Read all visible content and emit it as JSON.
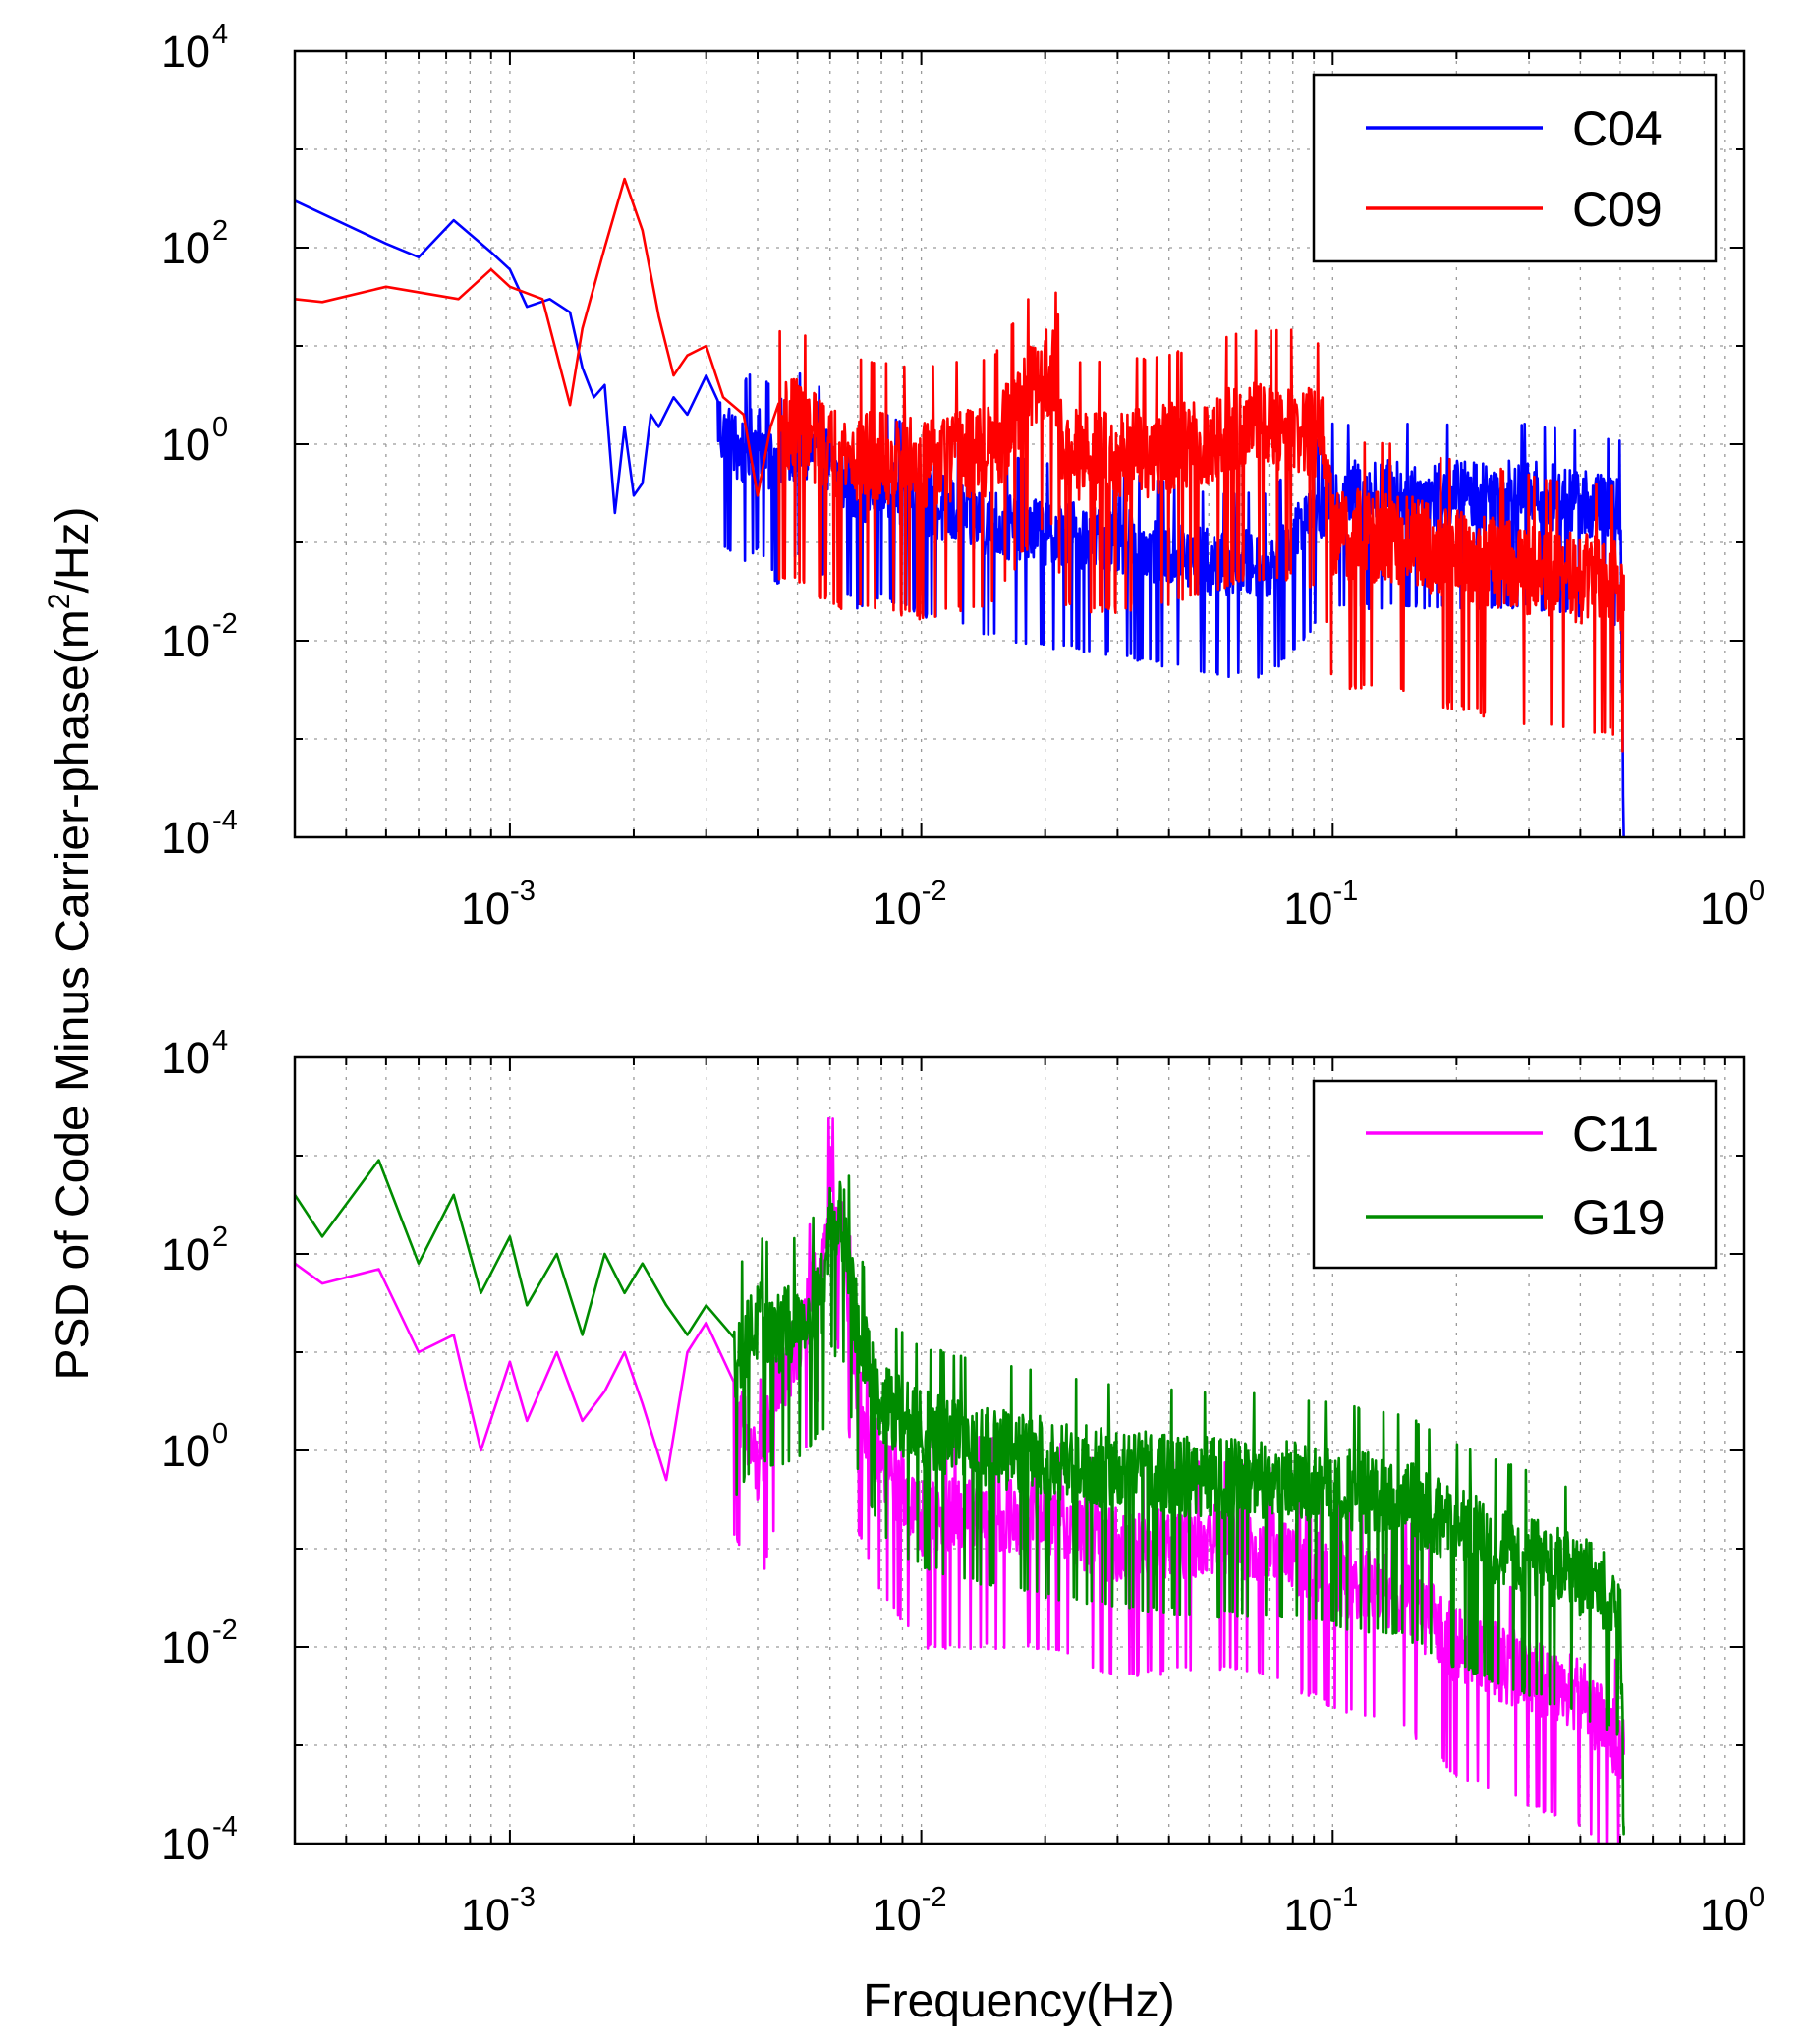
{
  "figure": {
    "ylabel": "PSD of Code Minus Carrier-phase(m",
    "ylabel_sup": "2",
    "ylabel_tail": "/Hz)",
    "xlabel": "Frequency(Hz)"
  },
  "chart_data": [
    {
      "type": "line",
      "title": "",
      "xlabel": "",
      "ylabel": "PSD of Code Minus Carrier-phase(m^2/Hz)",
      "xscale": "log",
      "yscale": "log",
      "xlim": [
        0.0003,
        1
      ],
      "ylim": [
        0.0001,
        10000
      ],
      "x_ticks": [
        {
          "base": "10",
          "exp": "-3",
          "value": 0.001
        },
        {
          "base": "10",
          "exp": "-2",
          "value": 0.01
        },
        {
          "base": "10",
          "exp": "-1",
          "value": 0.1
        },
        {
          "base": "10",
          "exp": "0",
          "value": 1
        }
      ],
      "y_ticks": [
        {
          "base": "10",
          "exp": "4",
          "value": 10000
        },
        {
          "base": "10",
          "exp": "2",
          "value": 100
        },
        {
          "base": "10",
          "exp": "0",
          "value": 1
        },
        {
          "base": "10",
          "exp": "-2",
          "value": 0.01
        },
        {
          "base": "10",
          "exp": "-4",
          "value": 0.0001
        }
      ],
      "grid": true,
      "legend_position": "top-right",
      "series": [
        {
          "name": "C04",
          "color": "#0000ff",
          "x": [
            0.0003,
            0.0005,
            0.0006,
            0.00073,
            0.0009,
            0.001,
            0.0011,
            0.00125,
            0.0014,
            0.0015,
            0.0016,
            0.0017,
            0.0018,
            0.0019,
            0.002,
            0.0021,
            0.0022,
            0.0023,
            0.0025,
            0.0027,
            0.003,
            0.0033,
            0.0037,
            0.004,
            0.0045,
            0.005,
            0.006,
            0.007,
            0.008,
            0.01,
            0.012,
            0.015,
            0.02,
            0.03,
            0.05,
            0.07,
            0.1,
            0.15,
            0.2,
            0.3,
            0.4,
            0.5,
            0.51
          ],
          "y": [
            300,
            110,
            80,
            190,
            90,
            60,
            25,
            30,
            22,
            6,
            3,
            4,
            0.2,
            1.5,
            0.3,
            0.4,
            2,
            1.5,
            3,
            2,
            5,
            1.2,
            0.8,
            1.2,
            0.5,
            1.0,
            0.6,
            0.3,
            0.4,
            0.25,
            0.2,
            0.15,
            0.12,
            0.1,
            0.06,
            0.06,
            0.3,
            0.3,
            0.3,
            0.3,
            0.25,
            0.2,
            0.0001
          ],
          "noise_from": 0.0032,
          "noise_amp": 0.7
        },
        {
          "name": "C09",
          "color": "#ff0000",
          "x": [
            0.0003,
            0.00035,
            0.0005,
            0.00075,
            0.0009,
            0.001,
            0.0012,
            0.0014,
            0.0015,
            0.0017,
            0.0019,
            0.0021,
            0.0023,
            0.0025,
            0.0027,
            0.003,
            0.0033,
            0.0037,
            0.004,
            0.0043,
            0.005,
            0.006,
            0.008,
            0.01,
            0.015,
            0.018,
            0.021,
            0.022,
            0.025,
            0.03,
            0.05,
            0.06,
            0.08,
            0.095,
            0.1,
            0.15,
            0.2,
            0.3,
            0.4,
            0.5,
            0.51
          ],
          "y": [
            30,
            28,
            40,
            30,
            60,
            40,
            30,
            2.5,
            15,
            100,
            500,
            150,
            20,
            5,
            8,
            10,
            3,
            2,
            0.3,
            1.5,
            1.5,
            0.8,
            0.7,
            0.6,
            0.8,
            3,
            6,
            0.8,
            0.7,
            0.7,
            1,
            1.5,
            1.5,
            1.0,
            0.12,
            0.1,
            0.07,
            0.05,
            0.04,
            0.04,
            0.02
          ],
          "noise_from": 0.0045,
          "noise_amp": 0.95
        }
      ],
      "legend": [
        "C04",
        "C09"
      ]
    },
    {
      "type": "line",
      "title": "",
      "xlabel": "Frequency(Hz)",
      "ylabel": "PSD of Code Minus Carrier-phase(m^2/Hz)",
      "xscale": "log",
      "yscale": "log",
      "xlim": [
        0.0003,
        1
      ],
      "ylim": [
        0.0001,
        10000
      ],
      "x_ticks": [
        {
          "base": "10",
          "exp": "-3",
          "value": 0.001
        },
        {
          "base": "10",
          "exp": "-2",
          "value": 0.01
        },
        {
          "base": "10",
          "exp": "-1",
          "value": 0.1
        },
        {
          "base": "10",
          "exp": "0",
          "value": 1
        }
      ],
      "y_ticks": [
        {
          "base": "10",
          "exp": "4",
          "value": 10000
        },
        {
          "base": "10",
          "exp": "2",
          "value": 100
        },
        {
          "base": "10",
          "exp": "0",
          "value": 1
        },
        {
          "base": "10",
          "exp": "-2",
          "value": 0.01
        },
        {
          "base": "10",
          "exp": "-4",
          "value": 0.0001
        }
      ],
      "grid": true,
      "legend_position": "top-right",
      "series": [
        {
          "name": "C11",
          "color": "#ff00ff",
          "x": [
            0.0003,
            0.00035,
            0.00048,
            0.0006,
            0.00073,
            0.00085,
            0.001,
            0.0011,
            0.0013,
            0.0015,
            0.0017,
            0.0019,
            0.0021,
            0.0024,
            0.0027,
            0.003,
            0.0035,
            0.004,
            0.0045,
            0.005,
            0.0058,
            0.006,
            0.0065,
            0.007,
            0.008,
            0.01,
            0.015,
            0.02,
            0.03,
            0.05,
            0.07,
            0.1,
            0.15,
            0.2,
            0.3,
            0.4,
            0.5,
            0.51
          ],
          "y": [
            80,
            50,
            70,
            10,
            15,
            1,
            8,
            2,
            10,
            2,
            4,
            10,
            3,
            0.5,
            10,
            20,
            3,
            0.6,
            5,
            10,
            100,
            500,
            100,
            3,
            0.7,
            0.2,
            0.2,
            0.2,
            0.1,
            0.12,
            0.1,
            0.05,
            0.03,
            0.01,
            0.005,
            0.003,
            0.001,
            0.0008
          ],
          "noise_from": 0.0035,
          "noise_amp": 0.8
        },
        {
          "name": "G19",
          "color": "#008c00",
          "x": [
            0.0003,
            0.00035,
            0.00048,
            0.0006,
            0.00073,
            0.00085,
            0.001,
            0.0011,
            0.0013,
            0.0015,
            0.0017,
            0.0019,
            0.0021,
            0.0024,
            0.0027,
            0.003,
            0.0035,
            0.004,
            0.0045,
            0.005,
            0.0058,
            0.006,
            0.0065,
            0.007,
            0.008,
            0.01,
            0.015,
            0.02,
            0.03,
            0.05,
            0.07,
            0.1,
            0.15,
            0.2,
            0.3,
            0.4,
            0.5,
            0.51
          ],
          "y": [
            400,
            150,
            900,
            80,
            400,
            40,
            150,
            30,
            100,
            15,
            100,
            40,
            80,
            30,
            15,
            30,
            8,
            20,
            15,
            20,
            40,
            250,
            200,
            15,
            3,
            1.5,
            1.0,
            0.8,
            0.6,
            0.5,
            0.5,
            0.4,
            0.3,
            0.15,
            0.08,
            0.05,
            0.03,
            0.00015
          ],
          "noise_from": 0.0035,
          "noise_amp": 0.85
        }
      ],
      "legend": [
        "C11",
        "G19"
      ]
    }
  ]
}
